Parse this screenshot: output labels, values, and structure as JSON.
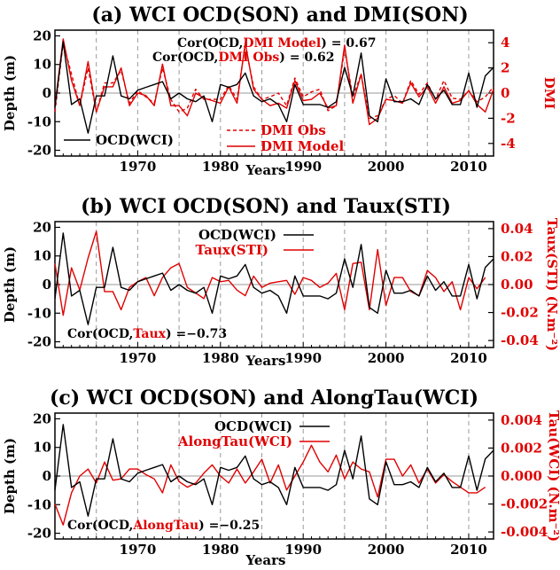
{
  "colors": {
    "black": "#000000",
    "red": "#e00000",
    "grid": "#999999"
  },
  "x_axis": {
    "label": "Years",
    "ticks": [
      1970,
      1980,
      1990,
      2000,
      2010
    ],
    "range": [
      1960,
      2013
    ],
    "dashed_years": [
      1965,
      1970,
      1975,
      1980,
      1985,
      1990,
      1995,
      2000,
      2005,
      2010
    ]
  },
  "ocd_wci": {
    "years": [
      1960,
      1961,
      1962,
      1963,
      1964,
      1965,
      1966,
      1967,
      1968,
      1969,
      1970,
      1971,
      1972,
      1973,
      1974,
      1975,
      1976,
      1977,
      1978,
      1979,
      1980,
      1981,
      1982,
      1983,
      1984,
      1985,
      1986,
      1987,
      1988,
      1989,
      1990,
      1991,
      1992,
      1993,
      1994,
      1995,
      1996,
      1997,
      1998,
      1999,
      2000,
      2001,
      2002,
      2003,
      2004,
      2005,
      2006,
      2007,
      2008,
      2009,
      2010,
      2011,
      2012,
      2013
    ],
    "values": [
      -5,
      18,
      -4,
      -2,
      -14,
      -1,
      -1,
      13,
      -1,
      -2,
      1,
      2,
      3,
      4,
      -2,
      0,
      -2,
      -3,
      -1,
      -10,
      3,
      2,
      3,
      7,
      -1,
      -3,
      -2,
      -4,
      -10,
      3,
      -4,
      -4,
      -4,
      -5,
      -3,
      9,
      -1,
      14,
      -8,
      -10,
      5,
      -3,
      -3,
      -2,
      -4,
      3,
      -2,
      1,
      -4,
      -4,
      7,
      -5,
      6,
      9
    ]
  },
  "panels": [
    {
      "title": "(a) WCI OCD(SON) and DMI(SON)",
      "ylabel_left": "Depth (m)",
      "ylabel_right": "DMI",
      "left_ticks": [
        -20,
        -10,
        0,
        10,
        20
      ],
      "right_ticks": [
        -4,
        -2,
        0,
        2,
        4
      ],
      "right_range": [
        -5,
        5
      ],
      "annotations": [
        {
          "prefix": "Cor(OCD,",
          "red": "DMI Model",
          "suffix": ") = 0.67"
        },
        {
          "prefix": "Cor(OCD,",
          "red": "DMI Obs",
          "suffix": ") = 0.62"
        }
      ],
      "legend": [
        "OCD(WCI)",
        "DMI Obs",
        "DMI Model"
      ]
    },
    {
      "title": "(b) WCI OCD(SON) and Taux(STI)",
      "ylabel_left": "Depth (m)",
      "ylabel_right": "Taux(STI) (N.m⁻²)",
      "left_ticks": [
        -20,
        -10,
        0,
        10,
        20
      ],
      "right_ticks": [
        "-0.04",
        "-0.02",
        "0.00",
        "0.02",
        "0.04"
      ],
      "right_range": [
        -0.045,
        0.045
      ],
      "annotation": {
        "prefix": "Cor(OCD,",
        "red": "Taux",
        "suffix": ") =−0.73"
      },
      "legend": [
        "OCD(WCI)",
        "Taux(STI)"
      ]
    },
    {
      "title": "(c) WCI OCD(SON) and AlongTau(WCI)",
      "ylabel_left": "Depth (m)",
      "ylabel_right": "Tau(WCI) (N.m⁻²)",
      "left_ticks": [
        -20,
        -10,
        0,
        10,
        20
      ],
      "right_ticks": [
        "-0.004",
        "-0.002",
        "0.000",
        "0.002",
        "0.004"
      ],
      "right_range": [
        -0.0045,
        0.0045
      ],
      "annotation": {
        "prefix": "Cor(OCD,",
        "red": "AlongTau",
        "suffix": ") =−0.25"
      },
      "legend": [
        "OCD(WCI)",
        "AlongTau(WCI)"
      ]
    }
  ],
  "chart_data": [
    {
      "type": "line",
      "title": "(a) WCI OCD(SON) and DMI(SON)",
      "xlabel": "Years",
      "ylabel": "Depth (m)",
      "ylabel_right": "DMI",
      "ylim": [
        -22,
        22
      ],
      "ylim_right": [
        -5,
        5
      ],
      "series": [
        {
          "name": "DMI Obs",
          "axis": "right",
          "style": "dashed",
          "x": [
            1960,
            1961,
            1962,
            1963,
            1964,
            1965,
            1966,
            1967,
            1968,
            1969,
            1970,
            1971,
            1972,
            1973,
            1974,
            1975,
            1976,
            1977,
            1978,
            1979,
            1980,
            1981,
            1982,
            1983,
            1984,
            1985,
            1986,
            1987,
            1988,
            1989,
            1990,
            1991,
            1992,
            1993,
            1994,
            1995,
            1996,
            1997,
            1998,
            1999,
            2000,
            2001,
            2002,
            2003,
            2004,
            2005,
            2006,
            2007,
            2008,
            2009,
            2010,
            2011,
            2012,
            2013
          ],
          "values": [
            -1.5,
            4.0,
            1.5,
            -1.0,
            2.0,
            -1.5,
            0.8,
            0.8,
            1.8,
            -0.8,
            0.2,
            -0.3,
            -0.8,
            2.0,
            -0.5,
            -1.5,
            -1.2,
            0.3,
            -0.5,
            -0.5,
            -0.5,
            0.6,
            -0.5,
            3.8,
            0.5,
            -0.5,
            -0.3,
            0.0,
            -1.0,
            1.2,
            -0.3,
            0.1,
            0.3,
            -1.4,
            -1.0,
            3.5,
            -0.3,
            1.5,
            -2.0,
            -1.8,
            -0.5,
            -0.2,
            -0.8,
            1.0,
            -0.1,
            0.8,
            -0.5,
            1.0,
            -0.4,
            -0.5,
            0.2,
            -0.7,
            -0.3,
            0.5
          ]
        },
        {
          "name": "DMI Model",
          "axis": "right",
          "style": "solid",
          "x": [
            1960,
            1961,
            1962,
            1963,
            1964,
            1965,
            1966,
            1967,
            1968,
            1969,
            1970,
            1971,
            1972,
            1973,
            1974,
            1975,
            1976,
            1977,
            1978,
            1979,
            1980,
            1981,
            1982,
            1983,
            1984,
            1985,
            1986,
            1987,
            1988,
            1989,
            1990,
            1991,
            1992,
            1993,
            1994,
            1995,
            1996,
            1997,
            1998,
            1999,
            2000,
            2001,
            2002,
            2003,
            2004,
            2005,
            2006,
            2007,
            2008,
            2009,
            2010,
            2011,
            2012,
            2013
          ],
          "values": [
            -1.0,
            4.3,
            1.0,
            -1.0,
            2.5,
            -1.5,
            0.5,
            0.5,
            2.0,
            -1.0,
            0.0,
            -0.2,
            -1.0,
            2.3,
            -1.0,
            -1.0,
            -1.8,
            0.0,
            -0.4,
            -0.6,
            -0.8,
            0.5,
            -0.8,
            4.0,
            0.3,
            -0.5,
            -1.0,
            -0.8,
            -1.2,
            1.0,
            -0.6,
            -0.5,
            0.0,
            -1.2,
            -1.0,
            3.8,
            -0.8,
            1.5,
            -2.5,
            -2.0,
            -0.5,
            -0.6,
            -0.8,
            0.8,
            -0.3,
            0.5,
            -0.8,
            0.5,
            -0.8,
            -0.6,
            0.2,
            -0.9,
            -1.5,
            0.3
          ]
        },
        {
          "name": "OCD(WCI)",
          "axis": "left",
          "style": "solid",
          "ref": "ocd_wci"
        }
      ]
    },
    {
      "type": "line",
      "title": "(b) WCI OCD(SON) and Taux(STI)",
      "xlabel": "Years",
      "ylabel": "Depth (m)",
      "ylabel_right": "Taux(STI) (N.m⁻²)",
      "ylim": [
        -22,
        22
      ],
      "ylim_right": [
        -0.045,
        0.045
      ],
      "series": [
        {
          "name": "Taux(STI)",
          "axis": "right",
          "style": "solid",
          "x": [
            1960,
            1961,
            1962,
            1963,
            1964,
            1965,
            1966,
            1967,
            1968,
            1969,
            1970,
            1971,
            1972,
            1973,
            1974,
            1975,
            1976,
            1977,
            1978,
            1979,
            1980,
            1981,
            1982,
            1983,
            1984,
            1985,
            1986,
            1987,
            1988,
            1989,
            1990,
            1991,
            1992,
            1993,
            1994,
            1995,
            1996,
            1997,
            1998,
            1999,
            2000,
            2001,
            2002,
            2003,
            2004,
            2005,
            2006,
            2007,
            2008,
            2009,
            2010,
            2011,
            2012
          ],
          "values": [
            0.015,
            -0.022,
            0.012,
            -0.004,
            0.019,
            0.038,
            -0.005,
            -0.005,
            -0.018,
            -0.002,
            0.002,
            0.005,
            -0.008,
            0.005,
            0.012,
            0.015,
            -0.002,
            -0.006,
            -0.01,
            0.005,
            0.002,
            0.003,
            -0.004,
            -0.008,
            0.006,
            -0.002,
            0.001,
            0.002,
            0.003,
            -0.007,
            0.005,
            0.003,
            -0.002,
            0.001,
            0.008,
            -0.018,
            0.015,
            0.016,
            -0.018,
            0.025,
            -0.015,
            0.005,
            0.005,
            -0.005,
            -0.008,
            0.01,
            0.005,
            -0.005,
            0.002,
            -0.018,
            0.005,
            -0.003,
            0.005
          ]
        },
        {
          "name": "OCD(WCI)",
          "axis": "left",
          "style": "solid",
          "ref": "ocd_wci"
        }
      ]
    },
    {
      "type": "line",
      "title": "(c) WCI OCD(SON) and AlongTau(WCI)",
      "xlabel": "Years",
      "ylabel": "Depth (m)",
      "ylabel_right": "Tau(WCI) (N.m⁻²)",
      "ylim": [
        -22,
        22
      ],
      "ylim_right": [
        -0.0045,
        0.0045
      ],
      "series": [
        {
          "name": "AlongTau(WCI)",
          "axis": "right",
          "style": "solid",
          "x": [
            1960,
            1961,
            1962,
            1963,
            1964,
            1965,
            1966,
            1967,
            1968,
            1969,
            1970,
            1971,
            1972,
            1973,
            1974,
            1975,
            1976,
            1977,
            1978,
            1979,
            1980,
            1981,
            1982,
            1983,
            1984,
            1985,
            1986,
            1987,
            1988,
            1989,
            1990,
            1991,
            1992,
            1993,
            1994,
            1995,
            1996,
            1997,
            1998,
            1999,
            2000,
            2001,
            2002,
            2003,
            2004,
            2005,
            2006,
            2007,
            2008,
            2009,
            2010,
            2011,
            2012
          ],
          "values": [
            -0.002,
            -0.0035,
            -0.0012,
            0.0,
            0.0005,
            -0.0005,
            0.001,
            -0.0003,
            -0.0002,
            0.0005,
            0.0005,
            0.0001,
            -0.0002,
            -0.0012,
            0.0008,
            -0.0004,
            -0.0008,
            -0.0005,
            0.0002,
            0.0008,
            0.0,
            -0.0005,
            0.0005,
            -0.0005,
            0.0003,
            0.0012,
            -0.0005,
            0.0008,
            -0.001,
            0.0,
            0.001,
            0.0022,
            0.001,
            0.0003,
            0.0015,
            -0.0002,
            0.001,
            0.0005,
            0.0003,
            -0.0015,
            0.0012,
            0.0012,
            0.0,
            0.0008,
            -0.0005,
            0.0005,
            -0.0005,
            0.0001,
            -0.0004,
            -0.0008,
            -0.0012,
            -0.0012,
            -0.0008
          ]
        },
        {
          "name": "OCD(WCI)",
          "axis": "left",
          "style": "solid",
          "ref": "ocd_wci"
        }
      ]
    }
  ]
}
